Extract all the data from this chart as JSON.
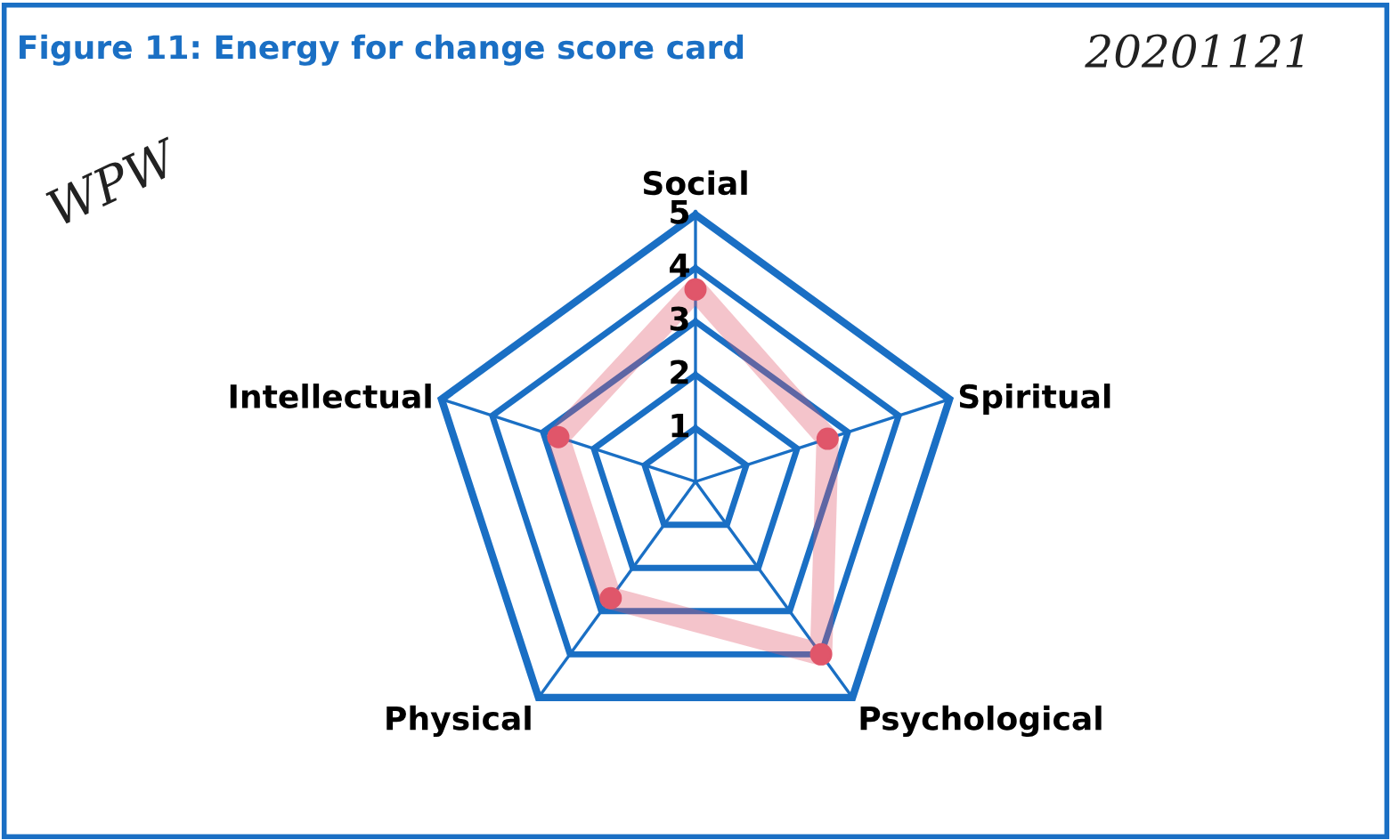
{
  "chart_data": {
    "type": "radar",
    "title": "Figure 11: Energy for change score card",
    "categories": [
      "Social",
      "Spiritual",
      "Psychological",
      "Physical",
      "Intellectual"
    ],
    "series": [
      {
        "color": "#e0566a",
        "values": [
          3.6,
          2.6,
          4.0,
          2.7,
          2.7
        ]
      }
    ],
    "ylim": [
      0,
      5
    ],
    "yticks": [
      1,
      2,
      3,
      4,
      5
    ],
    "grid": true,
    "marker": "circle",
    "annotations": [
      "20201121",
      "WPW"
    ]
  }
}
